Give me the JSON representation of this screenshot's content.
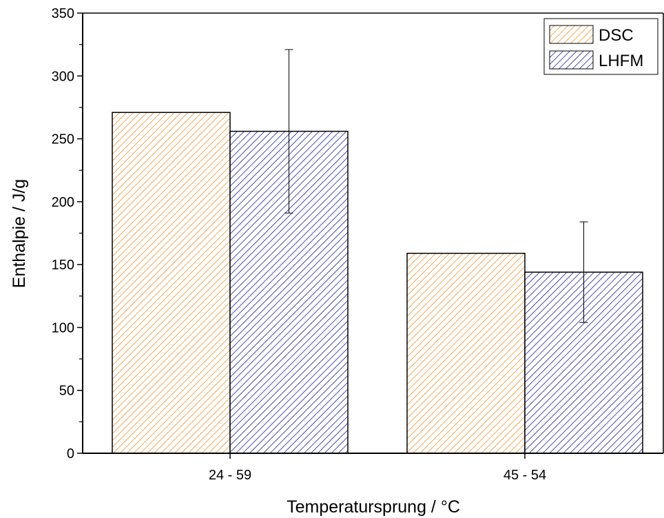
{
  "chart_data": {
    "type": "bar",
    "title": "",
    "xlabel": "Temperatursprung / °C",
    "ylabel": "Enthalpie / J/g",
    "categories": [
      "24 - 59",
      "45 - 54"
    ],
    "ylim": [
      0,
      350
    ],
    "yticks": [
      0,
      50,
      100,
      150,
      200,
      250,
      300,
      350
    ],
    "grid": false,
    "legend_position": "top-right",
    "series": [
      {
        "name": "DSC",
        "values": [
          271,
          159
        ],
        "errors": [
          null,
          null
        ],
        "color": "#f0922c",
        "pattern": "diagonal-hatch"
      },
      {
        "name": "LHFM",
        "values": [
          256,
          144
        ],
        "errors": [
          65,
          40
        ],
        "color": "#1e1e9e",
        "pattern": "diagonal-hatch"
      }
    ]
  }
}
